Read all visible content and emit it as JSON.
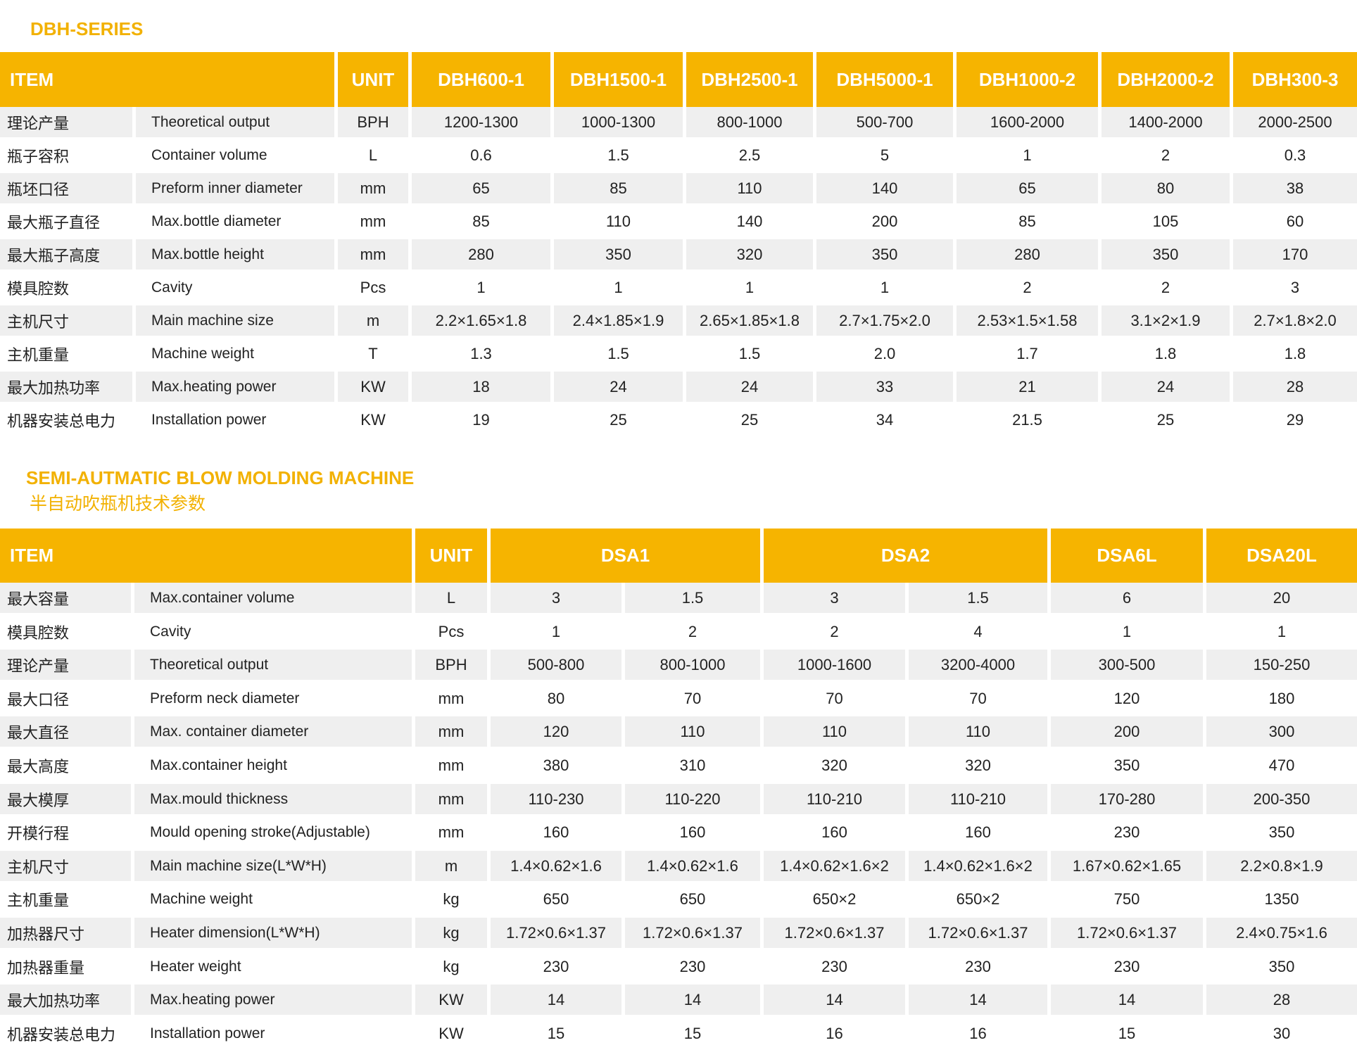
{
  "colors": {
    "accent": "#f6b400",
    "row_alt": "#efefef"
  },
  "dbh": {
    "title": "DBH-SERIES",
    "headers": {
      "item": "ITEM",
      "unit": "UNIT",
      "models": [
        "DBH600-1",
        "DBH1500-1",
        "DBH2500-1",
        "DBH5000-1",
        "DBH1000-2",
        "DBH2000-2",
        "DBH300-3"
      ]
    },
    "rows": [
      {
        "cn": "理论产量",
        "en": "Theoretical  output",
        "unit": "BPH",
        "values": [
          "1200-1300",
          "1000-1300",
          "800-1000",
          "500-700",
          "1600-2000",
          "1400-2000",
          "2000-2500"
        ]
      },
      {
        "cn": "瓶子容积",
        "en": "Container volume",
        "unit": "L",
        "values": [
          "0.6",
          "1.5",
          "2.5",
          "5",
          "1",
          "2",
          "0.3"
        ]
      },
      {
        "cn": "瓶坯口径",
        "en": "Preform inner diameter",
        "unit": "mm",
        "values": [
          "65",
          "85",
          "110",
          "140",
          "65",
          "80",
          "38"
        ]
      },
      {
        "cn": "最大瓶子直径",
        "en": "Max.bottle diameter",
        "unit": "mm",
        "values": [
          "85",
          "110",
          "140",
          "200",
          "85",
          "105",
          "60"
        ]
      },
      {
        "cn": "最大瓶子高度",
        "en": "Max.bottle height",
        "unit": "mm",
        "values": [
          "280",
          "350",
          "320",
          "350",
          "280",
          "350",
          "170"
        ]
      },
      {
        "cn": "模具腔数",
        "en": "Cavity",
        "unit": "Pcs",
        "values": [
          "1",
          "1",
          "1",
          "1",
          "2",
          "2",
          "3"
        ]
      },
      {
        "cn": "主机尺寸",
        "en": "Main machine size",
        "unit": "m",
        "values": [
          "2.2×1.65×1.8",
          "2.4×1.85×1.9",
          "2.65×1.85×1.8",
          "2.7×1.75×2.0",
          "2.53×1.5×1.58",
          "3.1×2×1.9",
          "2.7×1.8×2.0"
        ]
      },
      {
        "cn": "主机重量",
        "en": "Machine weight",
        "unit": "T",
        "values": [
          "1.3",
          "1.5",
          "1.5",
          "2.0",
          "1.7",
          "1.8",
          "1.8"
        ]
      },
      {
        "cn": "最大加热功率",
        "en": "Max.heating power",
        "unit": "KW",
        "values": [
          "18",
          "24",
          "24",
          "33",
          "21",
          "24",
          "28"
        ]
      },
      {
        "cn": "机器安装总电力",
        "en": "Installation power",
        "unit": "KW",
        "values": [
          "19",
          "25",
          "25",
          "34",
          "21.5",
          "25",
          "29"
        ]
      }
    ]
  },
  "dsa": {
    "title": "SEMI-AUTMATIC BLOW MOLDING MACHINE",
    "subtitle": "半自动吹瓶机技术参数",
    "headers": {
      "item": "ITEM",
      "unit": "UNIT",
      "models": [
        "DSA1",
        "DSA2",
        "DSA6L",
        "DSA20L"
      ]
    },
    "rows": [
      {
        "cn": "最大容量",
        "en": "Max.container volume",
        "unit": "L",
        "values": [
          "3",
          "1.5",
          "3",
          "1.5",
          "6",
          "20"
        ]
      },
      {
        "cn": "模具腔数",
        "en": "Cavity",
        "unit": "Pcs",
        "values": [
          "1",
          "2",
          "2",
          "4",
          "1",
          "1"
        ]
      },
      {
        "cn": "理论产量",
        "en": "Theoretical  output",
        "unit": "BPH",
        "values": [
          "500-800",
          "800-1000",
          "1000-1600",
          "3200-4000",
          "300-500",
          "150-250"
        ]
      },
      {
        "cn": "最大口径",
        "en": "Preform neck diameter",
        "unit": "mm",
        "values": [
          "80",
          "70",
          "70",
          "70",
          "120",
          "180"
        ]
      },
      {
        "cn": "最大直径",
        "en": "Max. container   diameter",
        "unit": "mm",
        "values": [
          "120",
          "110",
          "110",
          "110",
          "200",
          "300"
        ]
      },
      {
        "cn": "最大高度",
        "en": "Max.container height",
        "unit": "mm",
        "values": [
          "380",
          "310",
          "320",
          "320",
          "350",
          "470"
        ]
      },
      {
        "cn": "最大模厚",
        "en": "Max.mould thickness",
        "unit": "mm",
        "values": [
          "110-230",
          "110-220",
          "110-210",
          "110-210",
          "170-280",
          "200-350"
        ]
      },
      {
        "cn": "开模行程",
        "en": "Mould opening stroke(Adjustable)",
        "unit": "mm",
        "values": [
          "160",
          "160",
          "160",
          "160",
          "230",
          "350"
        ]
      },
      {
        "cn": "主机尺寸",
        "en": "Main machine size(L*W*H)",
        "unit": "m",
        "values": [
          "1.4×0.62×1.6",
          "1.4×0.62×1.6",
          "1.4×0.62×1.6×2",
          "1.4×0.62×1.6×2",
          "1.67×0.62×1.65",
          "2.2×0.8×1.9"
        ]
      },
      {
        "cn": "主机重量",
        "en": "Machine weight",
        "unit": "kg",
        "values": [
          "650",
          "650",
          "650×2",
          "650×2",
          "750",
          "1350"
        ]
      },
      {
        "cn": "加热器尺寸",
        "en": "Heater dimension(L*W*H)",
        "unit": "kg",
        "values": [
          "1.72×0.6×1.37",
          "1.72×0.6×1.37",
          "1.72×0.6×1.37",
          "1.72×0.6×1.37",
          "1.72×0.6×1.37",
          "2.4×0.75×1.6"
        ]
      },
      {
        "cn": "加热器重量",
        "en": "Heater weight",
        "unit": "kg",
        "values": [
          "230",
          "230",
          "230",
          "230",
          "230",
          "350"
        ]
      },
      {
        "cn": "最大加热功率",
        "en": "Max.heating power",
        "unit": "KW",
        "values": [
          "14",
          "14",
          "14",
          "14",
          "14",
          "28"
        ]
      },
      {
        "cn": "机器安装总电力",
        "en": "Installation power",
        "unit": "KW",
        "values": [
          "15",
          "15",
          "16",
          "16",
          "15",
          "30"
        ]
      }
    ]
  }
}
